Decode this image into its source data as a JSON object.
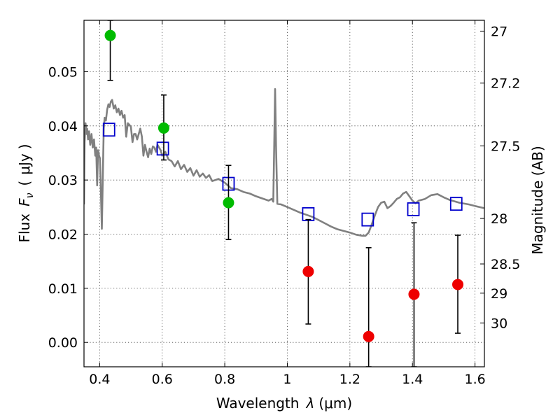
{
  "chart_data": {
    "type": "scatter",
    "title": "",
    "xlabel": "Wavelength",
    "xlabel_symbol": "λ",
    "xlabel_unit": "(μm)",
    "ylabel": "Flux",
    "ylabel_symbol": "F",
    "ylabel_subscript": "ν",
    "ylabel_unit_open": "(",
    "ylabel_unit": "μJy",
    "ylabel_unit_close": ")",
    "y2label": "Magnitude (AB)",
    "xlim": [
      0.35,
      1.63
    ],
    "ylim": [
      -0.0045,
      0.0595
    ],
    "grid": true,
    "x_ticks": [
      {
        "value": 0.4,
        "label": "0.4"
      },
      {
        "value": 0.6,
        "label": "0.6"
      },
      {
        "value": 0.8,
        "label": "0.8"
      },
      {
        "value": 1.0,
        "label": "1"
      },
      {
        "value": 1.2,
        "label": "1.2"
      },
      {
        "value": 1.4,
        "label": "1.4"
      },
      {
        "value": 1.6,
        "label": "1.6"
      }
    ],
    "y_ticks": [
      {
        "value": 0.0,
        "label": "0.00"
      },
      {
        "value": 0.01,
        "label": "0.01"
      },
      {
        "value": 0.02,
        "label": "0.02"
      },
      {
        "value": 0.03,
        "label": "0.03"
      },
      {
        "value": 0.04,
        "label": "0.04"
      },
      {
        "value": 0.05,
        "label": "0.05"
      }
    ],
    "y2_ticks": [
      {
        "label": "27",
        "flux": 0.0575
      },
      {
        "label": "27.2",
        "flux": 0.0479
      },
      {
        "label": "27.5",
        "flux": 0.0363
      },
      {
        "label": "28",
        "flux": 0.0229
      },
      {
        "label": "28.5",
        "flux": 0.0145
      },
      {
        "label": "29",
        "flux": 0.0091
      },
      {
        "label": "30",
        "flux": 0.0036
      }
    ],
    "series": [
      {
        "kind": "line",
        "color": "#808080",
        "points": [
          [
            0.35,
            0.0255
          ],
          [
            0.352,
            0.037
          ],
          [
            0.355,
            0.0405
          ],
          [
            0.358,
            0.0385
          ],
          [
            0.36,
            0.0395
          ],
          [
            0.363,
            0.0375
          ],
          [
            0.366,
            0.039
          ],
          [
            0.37,
            0.0365
          ],
          [
            0.374,
            0.0385
          ],
          [
            0.378,
            0.036
          ],
          [
            0.382,
            0.0375
          ],
          [
            0.386,
            0.0345
          ],
          [
            0.389,
            0.036
          ],
          [
            0.392,
            0.029
          ],
          [
            0.395,
            0.0355
          ],
          [
            0.398,
            0.0345
          ],
          [
            0.401,
            0.034
          ],
          [
            0.404,
            0.028
          ],
          [
            0.407,
            0.021
          ],
          [
            0.41,
            0.03
          ],
          [
            0.413,
            0.0395
          ],
          [
            0.416,
            0.0415
          ],
          [
            0.42,
            0.041
          ],
          [
            0.424,
            0.043
          ],
          [
            0.428,
            0.044
          ],
          [
            0.432,
            0.0435
          ],
          [
            0.436,
            0.0445
          ],
          [
            0.44,
            0.0448
          ],
          [
            0.445,
            0.0432
          ],
          [
            0.45,
            0.0438
          ],
          [
            0.455,
            0.0425
          ],
          [
            0.46,
            0.0432
          ],
          [
            0.465,
            0.042
          ],
          [
            0.47,
            0.0428
          ],
          [
            0.475,
            0.0415
          ],
          [
            0.48,
            0.042
          ],
          [
            0.485,
            0.038
          ],
          [
            0.49,
            0.0405
          ],
          [
            0.495,
            0.0402
          ],
          [
            0.5,
            0.0398
          ],
          [
            0.505,
            0.037
          ],
          [
            0.51,
            0.0385
          ],
          [
            0.515,
            0.0385
          ],
          [
            0.52,
            0.0375
          ],
          [
            0.525,
            0.0385
          ],
          [
            0.53,
            0.0395
          ],
          [
            0.535,
            0.038
          ],
          [
            0.54,
            0.0345
          ],
          [
            0.545,
            0.0365
          ],
          [
            0.55,
            0.0352
          ],
          [
            0.555,
            0.0342
          ],
          [
            0.56,
            0.0358
          ],
          [
            0.565,
            0.0348
          ],
          [
            0.57,
            0.0362
          ],
          [
            0.575,
            0.036
          ],
          [
            0.58,
            0.0352
          ],
          [
            0.585,
            0.0365
          ],
          [
            0.59,
            0.036
          ],
          [
            0.595,
            0.0355
          ],
          [
            0.6,
            0.0345
          ],
          [
            0.61,
            0.0352
          ],
          [
            0.62,
            0.0338
          ],
          [
            0.63,
            0.0335
          ],
          [
            0.64,
            0.0325
          ],
          [
            0.65,
            0.0335
          ],
          [
            0.66,
            0.032
          ],
          [
            0.67,
            0.0328
          ],
          [
            0.68,
            0.0315
          ],
          [
            0.69,
            0.0322
          ],
          [
            0.7,
            0.0308
          ],
          [
            0.71,
            0.0318
          ],
          [
            0.72,
            0.0306
          ],
          [
            0.73,
            0.0312
          ],
          [
            0.74,
            0.0304
          ],
          [
            0.75,
            0.0309
          ],
          [
            0.76,
            0.0298
          ],
          [
            0.78,
            0.0302
          ],
          [
            0.8,
            0.0295
          ],
          [
            0.82,
            0.0285
          ],
          [
            0.84,
            0.0283
          ],
          [
            0.86,
            0.0278
          ],
          [
            0.88,
            0.0275
          ],
          [
            0.9,
            0.027
          ],
          [
            0.92,
            0.0266
          ],
          [
            0.94,
            0.0262
          ],
          [
            0.95,
            0.0265
          ],
          [
            0.955,
            0.026
          ],
          [
            0.958,
            0.036
          ],
          [
            0.961,
            0.0468
          ],
          [
            0.964,
            0.036
          ],
          [
            0.968,
            0.0256
          ],
          [
            0.98,
            0.0255
          ],
          [
            1.0,
            0.025
          ],
          [
            1.02,
            0.0245
          ],
          [
            1.04,
            0.024
          ],
          [
            1.06,
            0.0236
          ],
          [
            1.08,
            0.0232
          ],
          [
            1.1,
            0.0226
          ],
          [
            1.12,
            0.022
          ],
          [
            1.14,
            0.0214
          ],
          [
            1.16,
            0.0209
          ],
          [
            1.18,
            0.0206
          ],
          [
            1.2,
            0.0203
          ],
          [
            1.22,
            0.0199
          ],
          [
            1.24,
            0.0197
          ],
          [
            1.25,
            0.0197
          ],
          [
            1.26,
            0.0203
          ],
          [
            1.27,
            0.0218
          ],
          [
            1.28,
            0.0235
          ],
          [
            1.29,
            0.025
          ],
          [
            1.3,
            0.0258
          ],
          [
            1.31,
            0.026
          ],
          [
            1.32,
            0.0248
          ],
          [
            1.33,
            0.0252
          ],
          [
            1.34,
            0.0258
          ],
          [
            1.35,
            0.0265
          ],
          [
            1.36,
            0.0268
          ],
          [
            1.37,
            0.0275
          ],
          [
            1.38,
            0.0278
          ],
          [
            1.39,
            0.027
          ],
          [
            1.4,
            0.0262
          ],
          [
            1.41,
            0.0257
          ],
          [
            1.42,
            0.0262
          ],
          [
            1.44,
            0.0265
          ],
          [
            1.46,
            0.0272
          ],
          [
            1.48,
            0.0274
          ],
          [
            1.5,
            0.0268
          ],
          [
            1.52,
            0.0263
          ],
          [
            1.55,
            0.0258
          ],
          [
            1.58,
            0.0255
          ],
          [
            1.6,
            0.0252
          ],
          [
            1.63,
            0.0248
          ]
        ]
      },
      {
        "kind": "markers",
        "marker": "open-square",
        "color": "#0000cc",
        "x": [
          0.43,
          0.602,
          0.812,
          1.067,
          1.257,
          1.403,
          1.54
        ],
        "y": [
          0.0393,
          0.0358,
          0.0293,
          0.0237,
          0.0227,
          0.0246,
          0.0256
        ]
      },
      {
        "kind": "errorbars",
        "marker": "filled-circle",
        "color": "#00bb00",
        "x": [
          0.434,
          0.605,
          0.812
        ],
        "y": [
          0.0567,
          0.0396,
          0.0258
        ],
        "yerr_low": [
          0.0484,
          0.0337,
          0.019
        ],
        "yerr_high": [
          0.0595,
          0.0457,
          0.0327
        ]
      },
      {
        "kind": "errorbars",
        "marker": "filled-circle",
        "color": "#ee0000",
        "x": [
          1.067,
          1.26,
          1.405,
          1.545
        ],
        "y": [
          0.0131,
          0.0011,
          0.0089,
          0.0107
        ],
        "yerr_low": [
          0.0034,
          -0.0045,
          -0.0045,
          0.0017
        ],
        "yerr_high": [
          0.0227,
          0.0175,
          0.0221,
          0.0198
        ]
      }
    ]
  }
}
